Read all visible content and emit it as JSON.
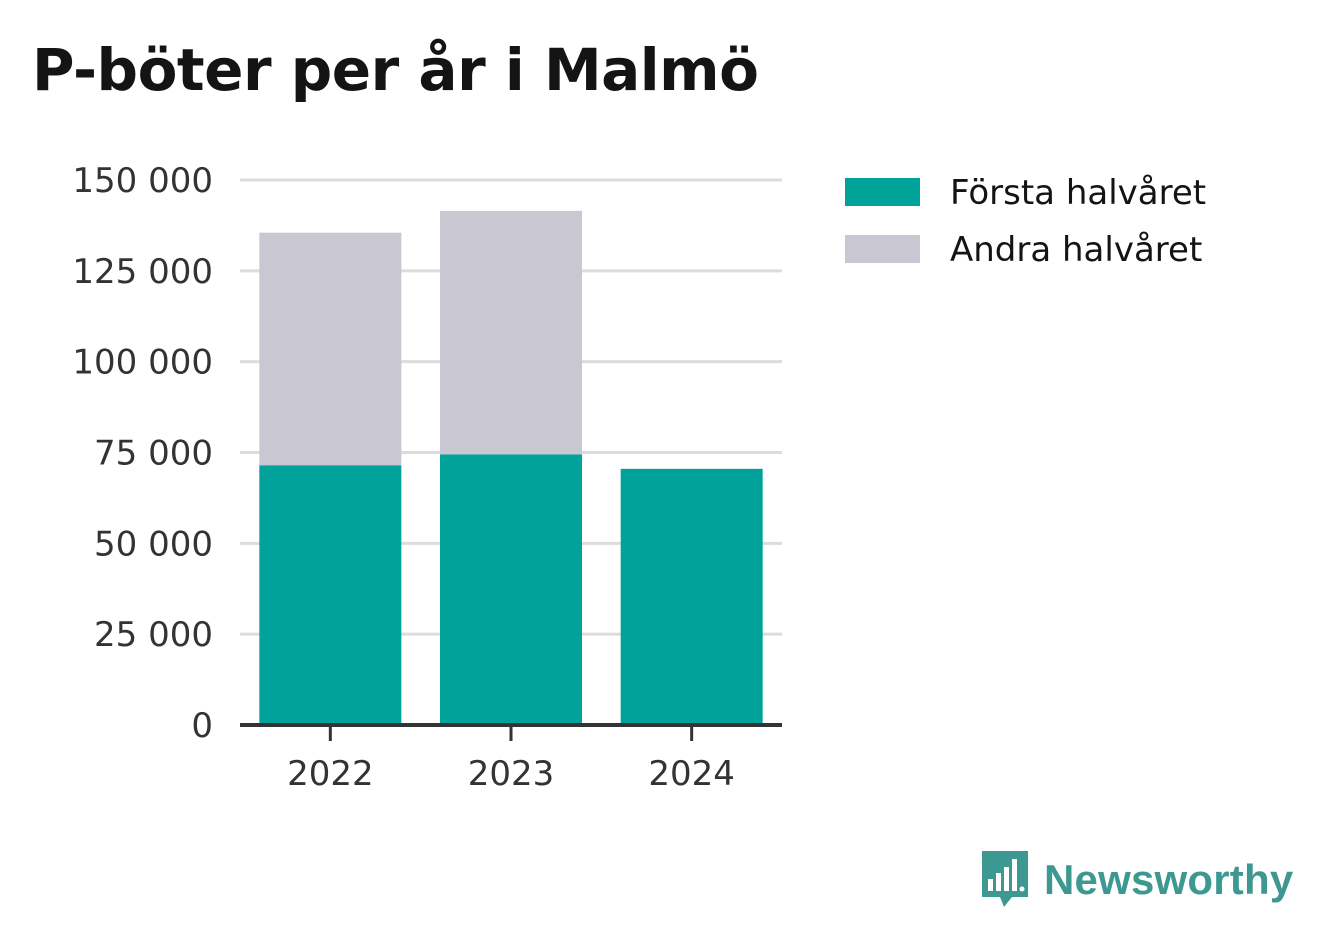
{
  "title": "P-böter per år i Malmö",
  "brand": {
    "name": "Newsworthy"
  },
  "chart_data": {
    "type": "bar",
    "stacked": true,
    "title": "P-böter per år i Malmö",
    "categories": [
      "2022",
      "2023",
      "2024"
    ],
    "series": [
      {
        "name": "Första halvåret",
        "color": "#00a29a",
        "values": [
          71500,
          74500,
          70500
        ]
      },
      {
        "name": "Andra halvåret",
        "color": "#c8c7d2",
        "values": [
          64000,
          67000,
          0
        ]
      }
    ],
    "y_ticks": [
      0,
      25000,
      50000,
      75000,
      100000,
      125000,
      150000
    ],
    "y_tick_labels": [
      "0",
      "25 000",
      "50 000",
      "75 000",
      "100 000",
      "125 000",
      "150 000"
    ],
    "ylim": [
      0,
      150000
    ],
    "xlabel": "",
    "ylabel": "",
    "grid": true,
    "legend_position": "right"
  }
}
